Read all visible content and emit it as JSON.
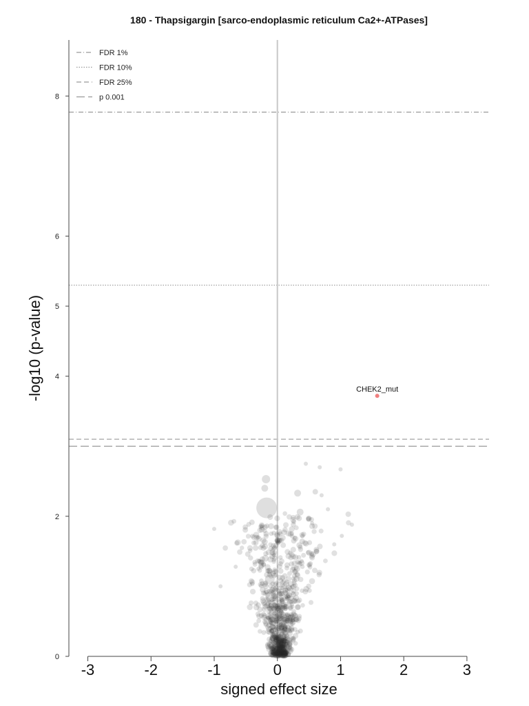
{
  "chart_data": {
    "type": "scatter",
    "title": "180 - Thapsigargin [sarco-endoplasmic reticulum Ca2+-ATPases]",
    "xlabel": "signed effect size",
    "ylabel": "-log10 (p-value)",
    "xlim": [
      -3.3,
      3.35
    ],
    "ylim": [
      0,
      8.8
    ],
    "x_ticks": [
      -3,
      -2,
      -1,
      0,
      1,
      2,
      3
    ],
    "y_ticks": [
      0,
      2,
      4,
      5,
      6,
      8
    ],
    "legend": {
      "placement": "top-left",
      "entries": [
        {
          "label": "FDR 1%",
          "style": "dashdot"
        },
        {
          "label": "FDR 10%",
          "style": "dotted"
        },
        {
          "label": "FDR 25%",
          "style": "dashed"
        },
        {
          "label": "p 0.001",
          "style": "longdash"
        }
      ]
    },
    "thresholds": [
      {
        "name": "FDR 1%",
        "y": 7.77,
        "style": "dashdot"
      },
      {
        "name": "FDR 10%",
        "y": 5.3,
        "style": "dotted"
      },
      {
        "name": "FDR 25%",
        "y": 3.1,
        "style": "dashed"
      },
      {
        "name": "p 0.001",
        "y": 3.0,
        "style": "longdash"
      }
    ],
    "zero_line_x": 0,
    "highlight": {
      "label": "CHEK2_mut",
      "x": 1.58,
      "y": 3.72,
      "color": "#f08080"
    },
    "big_points": [
      {
        "x": -0.17,
        "y": 2.12,
        "size": 15
      },
      {
        "x": -0.18,
        "y": 2.53,
        "size": 6
      },
      {
        "x": -0.2,
        "y": 2.4,
        "size": 5
      },
      {
        "x": -0.1,
        "y": 0.85,
        "size": 8
      },
      {
        "x": -0.12,
        "y": 1.1,
        "size": 7
      },
      {
        "x": -0.19,
        "y": 1.4,
        "size": 5
      },
      {
        "x": -0.37,
        "y": 1.7,
        "size": 4
      },
      {
        "x": 0.32,
        "y": 2.33,
        "size": 5
      },
      {
        "x": 0.36,
        "y": 2.06,
        "size": 5
      },
      {
        "x": -1.0,
        "y": 1.82,
        "size": 3
      },
      {
        "x": 1.18,
        "y": 1.88,
        "size": 3
      },
      {
        "x": 0.67,
        "y": 2.7,
        "size": 3
      },
      {
        "x": 1.0,
        "y": 2.67,
        "size": 3
      },
      {
        "x": 0.6,
        "y": 2.35,
        "size": 4
      },
      {
        "x": 0.7,
        "y": 2.3,
        "size": 3
      },
      {
        "x": 0.8,
        "y": 2.1,
        "size": 3
      },
      {
        "x": 0.55,
        "y": 1.9,
        "size": 3
      },
      {
        "x": 1.02,
        "y": 1.72,
        "size": 3
      },
      {
        "x": 0.26,
        "y": 1.65,
        "size": 4
      },
      {
        "x": 0.23,
        "y": 1.45,
        "size": 4
      },
      {
        "x": 0.5,
        "y": 1.3,
        "size": 3
      },
      {
        "x": 0.62,
        "y": 1.5,
        "size": 4
      },
      {
        "x": -0.3,
        "y": 1.25,
        "size": 3
      },
      {
        "x": -0.66,
        "y": 1.28,
        "size": 3
      },
      {
        "x": -0.9,
        "y": 1.0,
        "size": 3
      },
      {
        "x": 0.45,
        "y": 2.75,
        "size": 3
      },
      {
        "x": 0.9,
        "y": 1.6,
        "size": 3
      }
    ],
    "cloud_points_seed": 180,
    "cloud_points_count": 900
  }
}
